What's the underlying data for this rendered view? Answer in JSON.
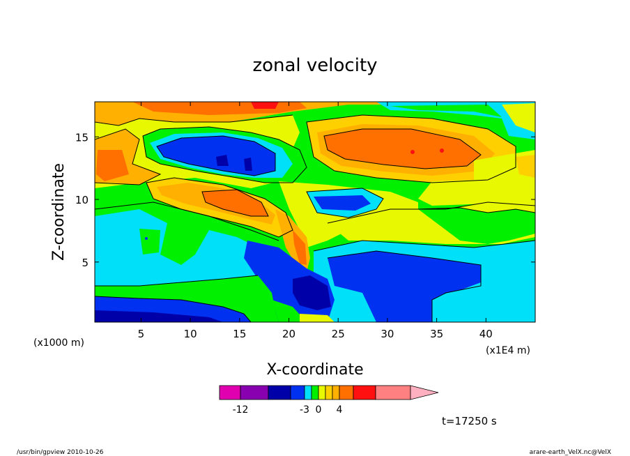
{
  "chart_data": {
    "type": "heatmap",
    "title": "zonal velocity",
    "xlabel": "X-coordinate",
    "ylabel": "Z-coordinate",
    "x_unit_left": "(x1000 m)",
    "x_unit_right": "(x1E4 m)",
    "x_ticks": [
      "5",
      "10",
      "15",
      "20",
      "25",
      "30",
      "35",
      "40"
    ],
    "x_tick_values": [
      5,
      10,
      15,
      20,
      25,
      30,
      35,
      40
    ],
    "y_ticks": [
      "5",
      "10",
      "15"
    ],
    "y_tick_values": [
      5,
      10,
      15
    ],
    "xlim": [
      0.3,
      45
    ],
    "ylim": [
      0.2,
      17.8
    ],
    "colorbar": {
      "colors": [
        "#e000b0",
        "#8800b0",
        "#0000a8",
        "#0030f0",
        "#00e0f8",
        "#00f000",
        "#e8f800",
        "#ffd000",
        "#ffb000",
        "#ff7000",
        "#ff1010",
        "#ff8080",
        "#ffb0c0"
      ],
      "tick_labels": [
        "-12",
        "-3",
        "0",
        "4"
      ]
    },
    "time_label": "t=17250 s"
  },
  "footer": {
    "left": "/usr/bin/gpview  2010-10-26",
    "right": "arare-earth_VelX.nc@VelX"
  }
}
